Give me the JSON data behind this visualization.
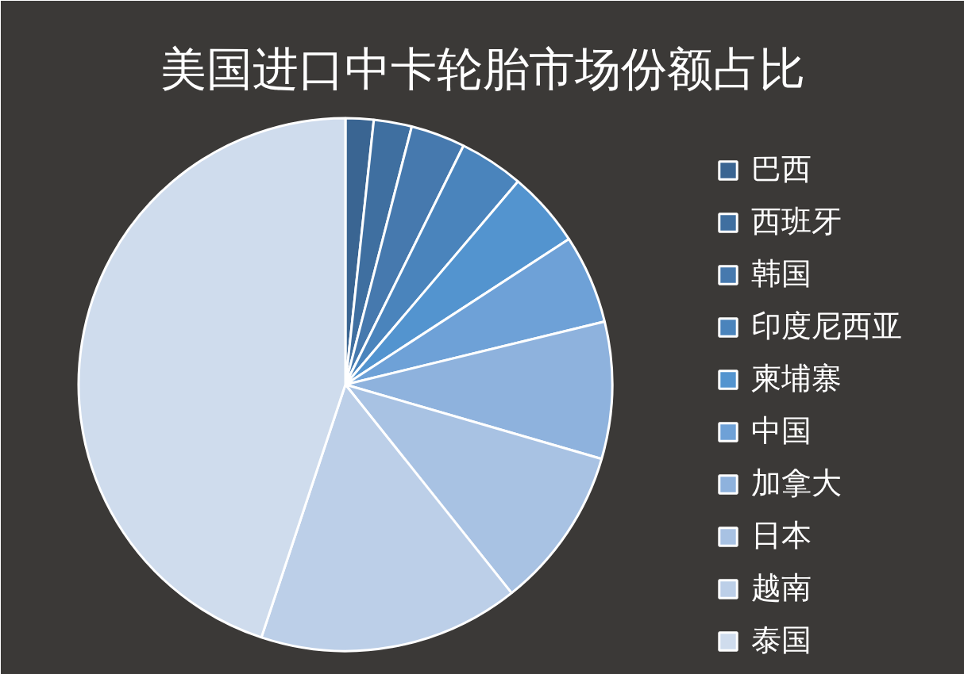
{
  "chart_data": {
    "type": "pie",
    "title": "美国进口中卡轮胎市场份额占比",
    "categories": [
      "巴西",
      "西班牙",
      "韩国",
      "印度尼西亚",
      "柬埔寨",
      "中国",
      "加拿大",
      "日本",
      "越南",
      "泰国"
    ],
    "values": [
      1.7,
      2.3,
      3.3,
      3.9,
      4.6,
      5.4,
      8.3,
      9.8,
      15.8,
      44.9
    ],
    "colors": [
      "#3a6592",
      "#3f6fa0",
      "#4679ae",
      "#4a84bc",
      "#5394cf",
      "#6ea1d7",
      "#8eb2dd",
      "#a8c2e3",
      "#bccfe8",
      "#cfdced"
    ],
    "legend": "right"
  }
}
